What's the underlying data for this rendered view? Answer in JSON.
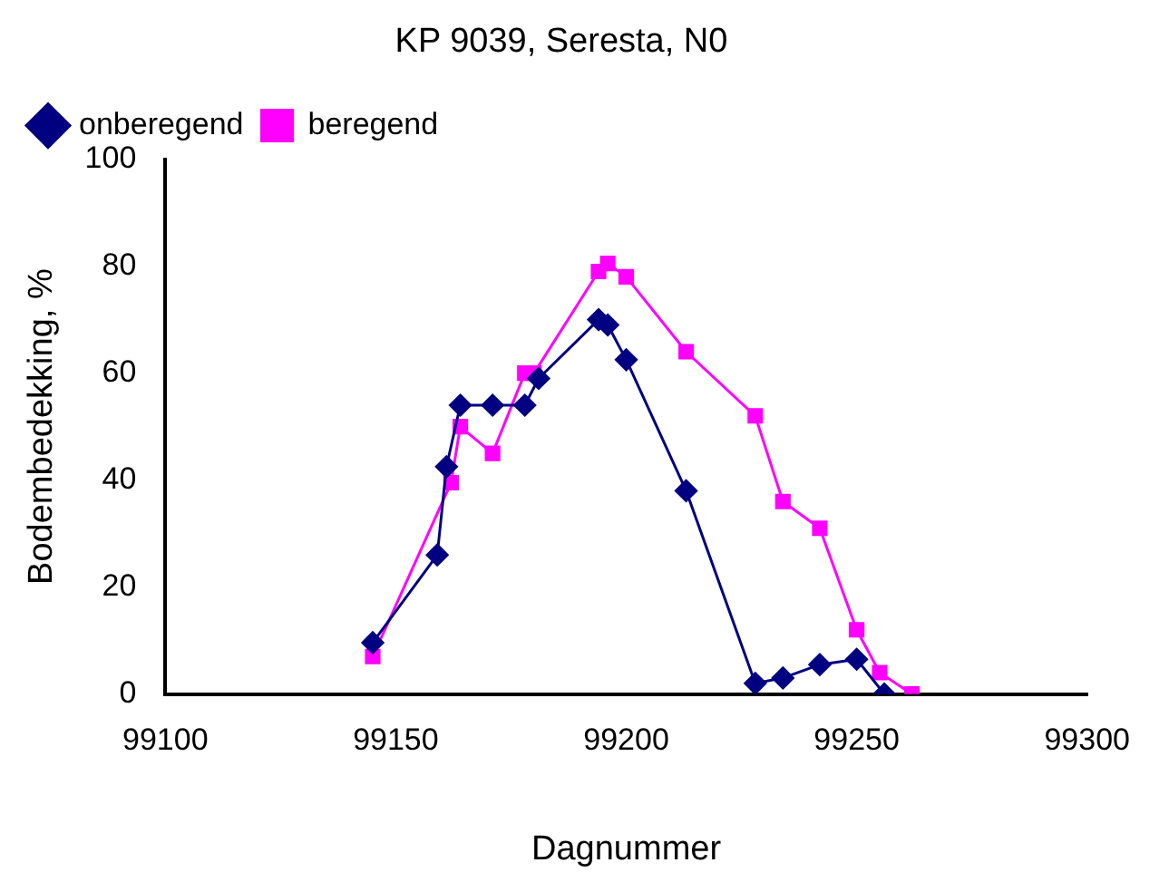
{
  "chart_data": {
    "type": "line",
    "title": "KP 9039, Seresta, N0",
    "xlabel": "Dagnummer",
    "ylabel": "Bodembedekking, %",
    "xlim": [
      99100,
      99300
    ],
    "xticks": [
      99100,
      99150,
      99200,
      99250,
      99300
    ],
    "ylim": [
      0,
      100
    ],
    "yticks": [
      0,
      20,
      40,
      60,
      80,
      100
    ],
    "grid": false,
    "legend": "top left",
    "series": [
      {
        "name": "onberegend",
        "color": "#000080",
        "marker": "diamond",
        "x": [
          99145,
          99159,
          99161,
          99164,
          99171,
          99178,
          99181,
          99194,
          99196,
          99200,
          99213,
          99228,
          99234,
          99242,
          99250,
          99256
        ],
        "values": [
          9.6,
          26,
          42.5,
          54,
          54,
          54,
          59,
          70,
          69,
          62.5,
          38,
          2,
          3,
          5.5,
          6.5,
          0
        ]
      },
      {
        "name": "beregend",
        "color": "#ff00ff",
        "marker": "square",
        "x": [
          99145,
          99162,
          99164,
          99171,
          99178,
          99180,
          99194,
          99196,
          99200,
          99213,
          99228,
          99234,
          99242,
          99250,
          99255,
          99262
        ],
        "values": [
          7,
          39.5,
          50,
          45,
          60,
          60,
          79,
          80.5,
          78,
          64,
          52,
          36,
          31,
          12,
          4,
          0
        ]
      }
    ]
  }
}
